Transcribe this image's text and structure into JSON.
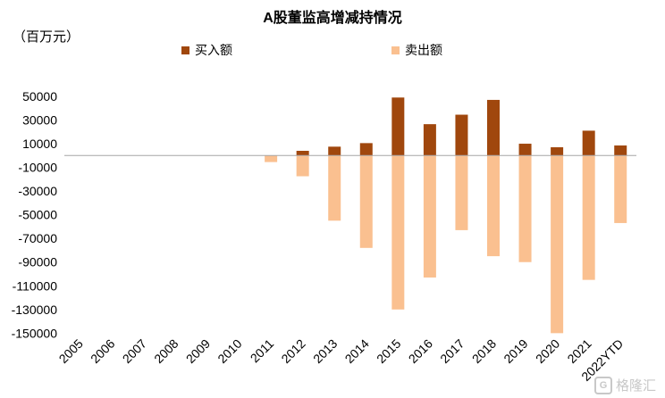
{
  "chart_data": {
    "type": "bar",
    "title": "A股董监高增减持情况",
    "unit_label": "（百万元）",
    "categories": [
      "2005",
      "2006",
      "2007",
      "2008",
      "2009",
      "2010",
      "2011",
      "2012",
      "2013",
      "2014",
      "2015",
      "2016",
      "2017",
      "2018",
      "2019",
      "2020",
      "2021",
      "2022YTD"
    ],
    "series": [
      {
        "name": "买入额",
        "color": "#a0470d",
        "values": [
          0,
          0,
          0,
          0,
          0,
          0,
          0,
          4000,
          7500,
          10500,
          49000,
          26500,
          34500,
          47000,
          10000,
          7000,
          21000,
          8500
        ]
      },
      {
        "name": "卖出额",
        "color": "#fac090",
        "values": [
          0,
          0,
          0,
          0,
          0,
          0,
          -5500,
          -17500,
          -55000,
          -78000,
          -130000,
          -103000,
          -63000,
          -85000,
          -90000,
          -150000,
          -105000,
          -57000
        ]
      }
    ],
    "yticks": [
      50000,
      30000,
      10000,
      -10000,
      -30000,
      -50000,
      -70000,
      -90000,
      -110000,
      -130000,
      -150000
    ],
    "ylim": [
      -152000,
      56000
    ],
    "stacked": true,
    "legend_position": "top",
    "grid": false
  },
  "watermark": {
    "text": "格隆汇",
    "logo_glyph": "G"
  }
}
